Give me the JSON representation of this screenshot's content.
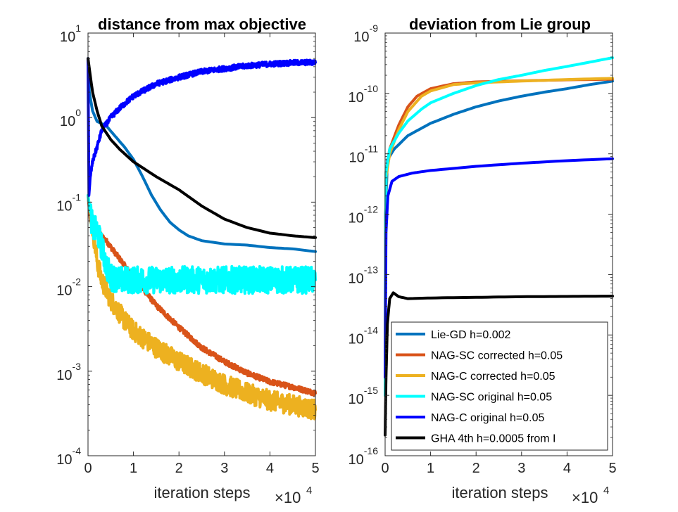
{
  "colors": {
    "lie_gd": "#0072BD",
    "nag_sc_corrected": "#D95319",
    "nag_c_corrected": "#EDB120",
    "nag_sc_original": "#00FFFF",
    "nag_c_original": "#0000FF",
    "gha": "#000000"
  },
  "chart_data": [
    {
      "type": "line",
      "title": "distance from max objective",
      "xlabel": "iteration steps",
      "x_exponent_base": "×10",
      "x_exponent_power": "4",
      "xlim": [
        0,
        5
      ],
      "x_ticks": [
        "0",
        "1",
        "2",
        "3",
        "4",
        "5"
      ],
      "yscale": "log",
      "ylim_exp": [
        -4,
        1
      ],
      "y_ticks": [
        {
          "base": "10",
          "exp": "-4"
        },
        {
          "base": "10",
          "exp": "-3"
        },
        {
          "base": "10",
          "exp": "-2"
        },
        {
          "base": "10",
          "exp": "-1"
        },
        {
          "base": "10",
          "exp": "0"
        },
        {
          "base": "10",
          "exp": "1"
        }
      ],
      "series": [
        {
          "name": "Lie-GD h=0.002",
          "color_key": "lie_gd",
          "noise": 0,
          "points": [
            [
              0,
              5.0
            ],
            [
              0.03,
              2.0
            ],
            [
              0.1,
              1.2
            ],
            [
              0.2,
              0.9
            ],
            [
              0.4,
              0.8
            ],
            [
              0.6,
              0.6
            ],
            [
              0.8,
              0.45
            ],
            [
              1.0,
              0.32
            ],
            [
              1.2,
              0.2
            ],
            [
              1.4,
              0.12
            ],
            [
              1.6,
              0.08
            ],
            [
              1.8,
              0.058
            ],
            [
              2.0,
              0.047
            ],
            [
              2.2,
              0.04
            ],
            [
              2.5,
              0.035
            ],
            [
              3.0,
              0.032
            ],
            [
              3.5,
              0.031
            ],
            [
              4.0,
              0.029
            ],
            [
              4.5,
              0.028
            ],
            [
              5.0,
              0.026
            ]
          ]
        },
        {
          "name": "NAG-SC corrected h=0.05",
          "color_key": "nag_sc_corrected",
          "noise": 0.03,
          "points": [
            [
              0,
              0.12
            ],
            [
              0.05,
              0.06
            ],
            [
              0.2,
              0.045
            ],
            [
              0.4,
              0.035
            ],
            [
              0.6,
              0.025
            ],
            [
              0.8,
              0.018
            ],
            [
              1.0,
              0.013
            ],
            [
              1.5,
              0.006
            ],
            [
              2.0,
              0.0033
            ],
            [
              2.5,
              0.0019
            ],
            [
              3.0,
              0.0013
            ],
            [
              3.5,
              0.00095
            ],
            [
              4.0,
              0.00075
            ],
            [
              4.5,
              0.00065
            ],
            [
              5.0,
              0.00055
            ]
          ]
        },
        {
          "name": "NAG-C corrected h=0.05",
          "color_key": "nag_c_corrected",
          "noise": 0.12,
          "points": [
            [
              0,
              0.12
            ],
            [
              0.1,
              0.05
            ],
            [
              0.2,
              0.02
            ],
            [
              0.3,
              0.012
            ],
            [
              0.5,
              0.007
            ],
            [
              0.8,
              0.004
            ],
            [
              1.0,
              0.003
            ],
            [
              1.5,
              0.0019
            ],
            [
              2.0,
              0.0013
            ],
            [
              2.5,
              0.00095
            ],
            [
              3.0,
              0.0007
            ],
            [
              3.5,
              0.00055
            ],
            [
              4.0,
              0.00045
            ],
            [
              4.5,
              0.0004
            ],
            [
              5.0,
              0.00035
            ]
          ]
        },
        {
          "name": "NAG-SC original h=0.05",
          "color_key": "nag_sc_original",
          "noise": 0.16,
          "points": [
            [
              0,
              0.12
            ],
            [
              0.1,
              0.05
            ],
            [
              0.2,
              0.045
            ],
            [
              0.3,
              0.03
            ],
            [
              0.4,
              0.018
            ],
            [
              0.5,
              0.013
            ],
            [
              0.7,
              0.012
            ],
            [
              1.0,
              0.012
            ],
            [
              2.0,
              0.012
            ],
            [
              3.0,
              0.012
            ],
            [
              4.0,
              0.012
            ],
            [
              5.0,
              0.012
            ]
          ]
        },
        {
          "name": "NAG-C original h=0.05",
          "color_key": "nag_c_original",
          "noise": 0.03,
          "points": [
            [
              0,
              5.0
            ],
            [
              0.02,
              0.12
            ],
            [
              0.05,
              0.2
            ],
            [
              0.1,
              0.3
            ],
            [
              0.2,
              0.45
            ],
            [
              0.3,
              0.7
            ],
            [
              0.5,
              1.0
            ],
            [
              0.7,
              1.3
            ],
            [
              1.0,
              1.8
            ],
            [
              1.5,
              2.5
            ],
            [
              2.0,
              3.0
            ],
            [
              2.5,
              3.5
            ],
            [
              3.0,
              3.8
            ],
            [
              3.5,
              4.1
            ],
            [
              4.0,
              4.3
            ],
            [
              4.5,
              4.45
            ],
            [
              5.0,
              4.5
            ]
          ]
        },
        {
          "name": "GHA 4th h=0.0005 from I",
          "color_key": "gha",
          "noise": 0,
          "points": [
            [
              0,
              5.0
            ],
            [
              0.1,
              2.0
            ],
            [
              0.2,
              1.2
            ],
            [
              0.3,
              0.8
            ],
            [
              0.5,
              0.55
            ],
            [
              0.7,
              0.42
            ],
            [
              1.0,
              0.3
            ],
            [
              1.5,
              0.2
            ],
            [
              2.0,
              0.14
            ],
            [
              2.5,
              0.09
            ],
            [
              3.0,
              0.063
            ],
            [
              3.5,
              0.05
            ],
            [
              4.0,
              0.043
            ],
            [
              4.5,
              0.04
            ],
            [
              5.0,
              0.038
            ]
          ]
        }
      ]
    },
    {
      "type": "line",
      "title": "deviation from Lie group",
      "xlabel": "iteration steps",
      "x_exponent_base": "×10",
      "x_exponent_power": "4",
      "xlim": [
        0,
        5
      ],
      "x_ticks": [
        "0",
        "1",
        "2",
        "3",
        "4",
        "5"
      ],
      "yscale": "log",
      "ylim_exp": [
        -16,
        -9
      ],
      "y_ticks": [
        {
          "base": "10",
          "exp": "-16"
        },
        {
          "base": "10",
          "exp": "-15"
        },
        {
          "base": "10",
          "exp": "-14"
        },
        {
          "base": "10",
          "exp": "-13"
        },
        {
          "base": "10",
          "exp": "-12"
        },
        {
          "base": "10",
          "exp": "-11"
        },
        {
          "base": "10",
          "exp": "-10"
        },
        {
          "base": "10",
          "exp": "-9"
        }
      ],
      "legend_position": "bottom-right",
      "series": [
        {
          "name": "Lie-GD h=0.002",
          "color_key": "lie_gd",
          "noise": 0,
          "points": [
            [
              0,
              1e-15
            ],
            [
              0.01,
              1e-12
            ],
            [
              0.05,
              8e-12
            ],
            [
              0.2,
              1.2e-11
            ],
            [
              0.5,
              2e-11
            ],
            [
              1.0,
              3.2e-11
            ],
            [
              1.5,
              4.5e-11
            ],
            [
              2.0,
              6e-11
            ],
            [
              2.5,
              7.5e-11
            ],
            [
              3.0,
              9e-11
            ],
            [
              3.5,
              1.05e-10
            ],
            [
              4.0,
              1.2e-10
            ],
            [
              4.5,
              1.4e-10
            ],
            [
              5.0,
              1.6e-10
            ]
          ]
        },
        {
          "name": "NAG-SC corrected h=0.05",
          "color_key": "nag_sc_corrected",
          "noise": 0,
          "points": [
            [
              0,
              1e-15
            ],
            [
              0.02,
              5e-12
            ],
            [
              0.1,
              1.2e-11
            ],
            [
              0.3,
              3e-11
            ],
            [
              0.5,
              6e-11
            ],
            [
              0.7,
              9e-11
            ],
            [
              1.0,
              1.2e-10
            ],
            [
              1.5,
              1.45e-10
            ],
            [
              2.0,
              1.55e-10
            ],
            [
              3.0,
              1.62e-10
            ],
            [
              4.0,
              1.68e-10
            ],
            [
              5.0,
              1.72e-10
            ]
          ]
        },
        {
          "name": "NAG-C corrected h=0.05",
          "color_key": "nag_c_corrected",
          "noise": 0,
          "points": [
            [
              0,
              1e-15
            ],
            [
              0.02,
              4e-12
            ],
            [
              0.1,
              1e-11
            ],
            [
              0.3,
              2.5e-11
            ],
            [
              0.5,
              5e-11
            ],
            [
              0.8,
              9e-11
            ],
            [
              1.0,
              1.1e-10
            ],
            [
              1.5,
              1.4e-10
            ],
            [
              2.0,
              1.5e-10
            ],
            [
              3.0,
              1.6e-10
            ],
            [
              4.0,
              1.7e-10
            ],
            [
              5.0,
              1.78e-10
            ]
          ]
        },
        {
          "name": "NAG-SC original h=0.05",
          "color_key": "nag_sc_original",
          "noise": 0,
          "points": [
            [
              0,
              1e-15
            ],
            [
              0.02,
              5e-12
            ],
            [
              0.1,
              1.2e-11
            ],
            [
              0.3,
              2.2e-11
            ],
            [
              0.5,
              3.5e-11
            ],
            [
              0.8,
              5.5e-11
            ],
            [
              1.0,
              7e-11
            ],
            [
              1.5,
              1e-10
            ],
            [
              2.0,
              1.35e-10
            ],
            [
              2.5,
              1.7e-10
            ],
            [
              3.0,
              2e-10
            ],
            [
              3.5,
              2.4e-10
            ],
            [
              4.0,
              2.8e-10
            ],
            [
              4.5,
              3.3e-10
            ],
            [
              5.0,
              3.9e-10
            ]
          ]
        },
        {
          "name": "NAG-C original h=0.05",
          "color_key": "nag_c_original",
          "noise": 0,
          "points": [
            [
              0,
              2e-15
            ],
            [
              0.02,
              5e-13
            ],
            [
              0.06,
              2e-12
            ],
            [
              0.15,
              3.5e-12
            ],
            [
              0.3,
              4.2e-12
            ],
            [
              0.6,
              4.8e-12
            ],
            [
              1.0,
              5.3e-12
            ],
            [
              2.0,
              6.2e-12
            ],
            [
              3.0,
              7e-12
            ],
            [
              4.0,
              7.7e-12
            ],
            [
              5.0,
              8.3e-12
            ]
          ]
        },
        {
          "name": "GHA 4th h=0.0005 from I",
          "color_key": "gha",
          "noise": 0,
          "points": [
            [
              0,
              2.2e-16
            ],
            [
              0.02,
              2e-15
            ],
            [
              0.05,
              1.5e-14
            ],
            [
              0.1,
              4e-14
            ],
            [
              0.18,
              5e-14
            ],
            [
              0.3,
              4.3e-14
            ],
            [
              0.5,
              4e-14
            ],
            [
              1.0,
              4.1e-14
            ],
            [
              2.0,
              4.2e-14
            ],
            [
              3.0,
              4.3e-14
            ],
            [
              4.0,
              4.35e-14
            ],
            [
              5.0,
              4.4e-14
            ]
          ]
        }
      ]
    }
  ]
}
